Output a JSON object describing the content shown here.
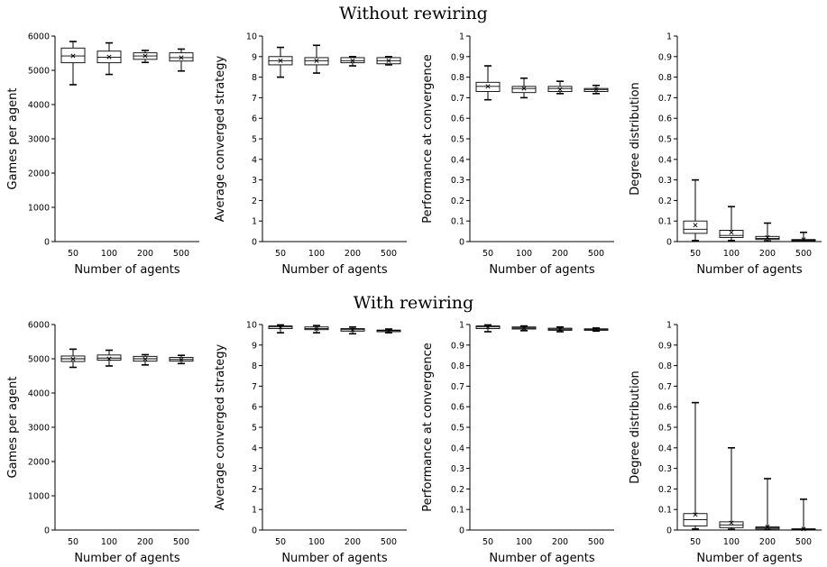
{
  "sections": {
    "top_title": "Without rewiring",
    "bottom_title": "With rewiring"
  },
  "chart_data": [
    {
      "type": "box",
      "section": "Without rewiring",
      "categories": [
        "50",
        "100",
        "200",
        "500"
      ],
      "xlabel": "Number of agents",
      "ylabel": "Games per agent",
      "ylim": [
        0,
        6000
      ],
      "yticks": [
        "0",
        "1000",
        "2000",
        "3000",
        "4000",
        "5000",
        "6000"
      ],
      "boxes": [
        {
          "min": 4580,
          "q1": 5220,
          "median": 5420,
          "q3": 5650,
          "max": 5840,
          "mean": 5420
        },
        {
          "min": 4880,
          "q1": 5220,
          "median": 5380,
          "q3": 5560,
          "max": 5800,
          "mean": 5390
        },
        {
          "min": 5230,
          "q1": 5320,
          "median": 5420,
          "q3": 5510,
          "max": 5580,
          "mean": 5420
        },
        {
          "min": 4980,
          "q1": 5270,
          "median": 5370,
          "q3": 5510,
          "max": 5620,
          "mean": 5370
        }
      ]
    },
    {
      "type": "box",
      "section": "Without rewiring",
      "categories": [
        "50",
        "100",
        "200",
        "500"
      ],
      "xlabel": "Number of agents",
      "ylabel": "Average converged strategy",
      "ylim": [
        0,
        10
      ],
      "yticks": [
        "0",
        "1",
        "2",
        "3",
        "4",
        "5",
        "6",
        "7",
        "8",
        "9",
        "10"
      ],
      "boxes": [
        {
          "min": 8.0,
          "q1": 8.6,
          "median": 8.8,
          "q3": 9.0,
          "max": 9.45,
          "mean": 8.8
        },
        {
          "min": 8.2,
          "q1": 8.6,
          "median": 8.8,
          "q3": 8.95,
          "max": 9.55,
          "mean": 8.8
        },
        {
          "min": 8.55,
          "q1": 8.7,
          "median": 8.8,
          "q3": 8.95,
          "max": 9.0,
          "mean": 8.8
        },
        {
          "min": 8.6,
          "q1": 8.65,
          "median": 8.8,
          "q3": 8.95,
          "max": 9.0,
          "mean": 8.8
        }
      ]
    },
    {
      "type": "box",
      "section": "Without rewiring",
      "categories": [
        "50",
        "100",
        "200",
        "500"
      ],
      "xlabel": "Number of agents",
      "ylabel": "Performance at convergence",
      "ylim": [
        0,
        1
      ],
      "yticks": [
        "0",
        "0.1",
        "0.2",
        "0.3",
        "0.4",
        "0.5",
        "0.6",
        "0.7",
        "0.8",
        "0.9",
        "1"
      ],
      "boxes": [
        {
          "min": 0.69,
          "q1": 0.73,
          "median": 0.755,
          "q3": 0.775,
          "max": 0.855,
          "mean": 0.755
        },
        {
          "min": 0.7,
          "q1": 0.725,
          "median": 0.745,
          "q3": 0.755,
          "max": 0.795,
          "mean": 0.745
        },
        {
          "min": 0.72,
          "q1": 0.73,
          "median": 0.745,
          "q3": 0.755,
          "max": 0.78,
          "mean": 0.74
        },
        {
          "min": 0.72,
          "q1": 0.73,
          "median": 0.74,
          "q3": 0.745,
          "max": 0.76,
          "mean": 0.74
        }
      ]
    },
    {
      "type": "box",
      "section": "Without rewiring",
      "categories": [
        "50",
        "100",
        "200",
        "500"
      ],
      "xlabel": "Number of agents",
      "ylabel": "Degree distribution",
      "ylim": [
        0,
        1
      ],
      "yticks": [
        "0",
        "0.1",
        "0.2",
        "0.3",
        "0.4",
        "0.5",
        "0.6",
        "0.7",
        "0.8",
        "0.9",
        "1"
      ],
      "boxes": [
        {
          "min": 0.005,
          "q1": 0.04,
          "median": 0.06,
          "q3": 0.1,
          "max": 0.3,
          "mean": 0.08
        },
        {
          "min": 0.005,
          "q1": 0.02,
          "median": 0.03,
          "q3": 0.055,
          "max": 0.17,
          "mean": 0.045
        },
        {
          "min": 0.003,
          "q1": 0.01,
          "median": 0.015,
          "q3": 0.025,
          "max": 0.09,
          "mean": 0.02
        },
        {
          "min": 0.002,
          "q1": 0.004,
          "median": 0.006,
          "q3": 0.01,
          "max": 0.045,
          "mean": 0.01
        }
      ]
    },
    {
      "type": "box",
      "section": "With rewiring",
      "categories": [
        "50",
        "100",
        "200",
        "500"
      ],
      "xlabel": "Number of agents",
      "ylabel": "Games per agent",
      "ylim": [
        0,
        6000
      ],
      "yticks": [
        "0",
        "1000",
        "2000",
        "3000",
        "4000",
        "5000",
        "6000"
      ],
      "boxes": [
        {
          "min": 4750,
          "q1": 4920,
          "median": 5000,
          "q3": 5080,
          "max": 5280,
          "mean": 4990
        },
        {
          "min": 4790,
          "q1": 4960,
          "median": 5020,
          "q3": 5110,
          "max": 5250,
          "mean": 5000
        },
        {
          "min": 4820,
          "q1": 4930,
          "median": 5000,
          "q3": 5070,
          "max": 5120,
          "mean": 4990
        },
        {
          "min": 4860,
          "q1": 4930,
          "median": 4980,
          "q3": 5040,
          "max": 5100,
          "mean": 4980
        }
      ]
    },
    {
      "type": "box",
      "section": "With rewiring",
      "categories": [
        "50",
        "100",
        "200",
        "500"
      ],
      "xlabel": "Number of agents",
      "ylabel": "Average converged strategy",
      "ylim": [
        0,
        10
      ],
      "yticks": [
        "0",
        "1",
        "2",
        "3",
        "4",
        "5",
        "6",
        "7",
        "8",
        "9",
        "10"
      ],
      "boxes": [
        {
          "min": 9.6,
          "q1": 9.8,
          "median": 9.88,
          "q3": 9.93,
          "max": 9.98,
          "mean": 9.87
        },
        {
          "min": 9.6,
          "q1": 9.75,
          "median": 9.8,
          "q3": 9.88,
          "max": 9.95,
          "mean": 9.8
        },
        {
          "min": 9.55,
          "q1": 9.68,
          "median": 9.75,
          "q3": 9.8,
          "max": 9.88,
          "mean": 9.74
        },
        {
          "min": 9.6,
          "q1": 9.65,
          "median": 9.7,
          "q3": 9.73,
          "max": 9.78,
          "mean": 9.7
        }
      ]
    },
    {
      "type": "box",
      "section": "With rewiring",
      "categories": [
        "50",
        "100",
        "200",
        "500"
      ],
      "xlabel": "Number of agents",
      "ylabel": "Performance at convergence",
      "ylim": [
        0,
        1
      ],
      "yticks": [
        "0",
        "0.1",
        "0.2",
        "0.3",
        "0.4",
        "0.5",
        "0.6",
        "0.7",
        "0.8",
        "0.9",
        "1"
      ],
      "boxes": [
        {
          "min": 0.965,
          "q1": 0.98,
          "median": 0.988,
          "q3": 0.993,
          "max": 0.998,
          "mean": 0.988
        },
        {
          "min": 0.97,
          "q1": 0.978,
          "median": 0.983,
          "q3": 0.988,
          "max": 0.993,
          "mean": 0.982
        },
        {
          "min": 0.965,
          "q1": 0.972,
          "median": 0.977,
          "q3": 0.982,
          "max": 0.988,
          "mean": 0.976
        },
        {
          "min": 0.968,
          "q1": 0.972,
          "median": 0.976,
          "q3": 0.979,
          "max": 0.983,
          "mean": 0.975
        }
      ]
    },
    {
      "type": "box",
      "section": "With rewiring",
      "categories": [
        "50",
        "100",
        "200",
        "500"
      ],
      "xlabel": "Number of agents",
      "ylabel": "Degree distribution",
      "ylim": [
        0,
        1
      ],
      "yticks": [
        "0",
        "0.1",
        "0.2",
        "0.3",
        "0.4",
        "0.5",
        "0.6",
        "0.7",
        "0.8",
        "0.9",
        "1"
      ],
      "boxes": [
        {
          "min": 0.005,
          "q1": 0.02,
          "median": 0.05,
          "q3": 0.08,
          "max": 0.62,
          "mean": 0.075
        },
        {
          "min": 0.004,
          "q1": 0.012,
          "median": 0.025,
          "q3": 0.04,
          "max": 0.4,
          "mean": 0.035
        },
        {
          "min": 0.003,
          "q1": 0.005,
          "median": 0.01,
          "q3": 0.015,
          "max": 0.25,
          "mean": 0.015
        },
        {
          "min": 0.002,
          "q1": 0.003,
          "median": 0.004,
          "q3": 0.006,
          "max": 0.15,
          "mean": 0.005
        }
      ]
    }
  ]
}
